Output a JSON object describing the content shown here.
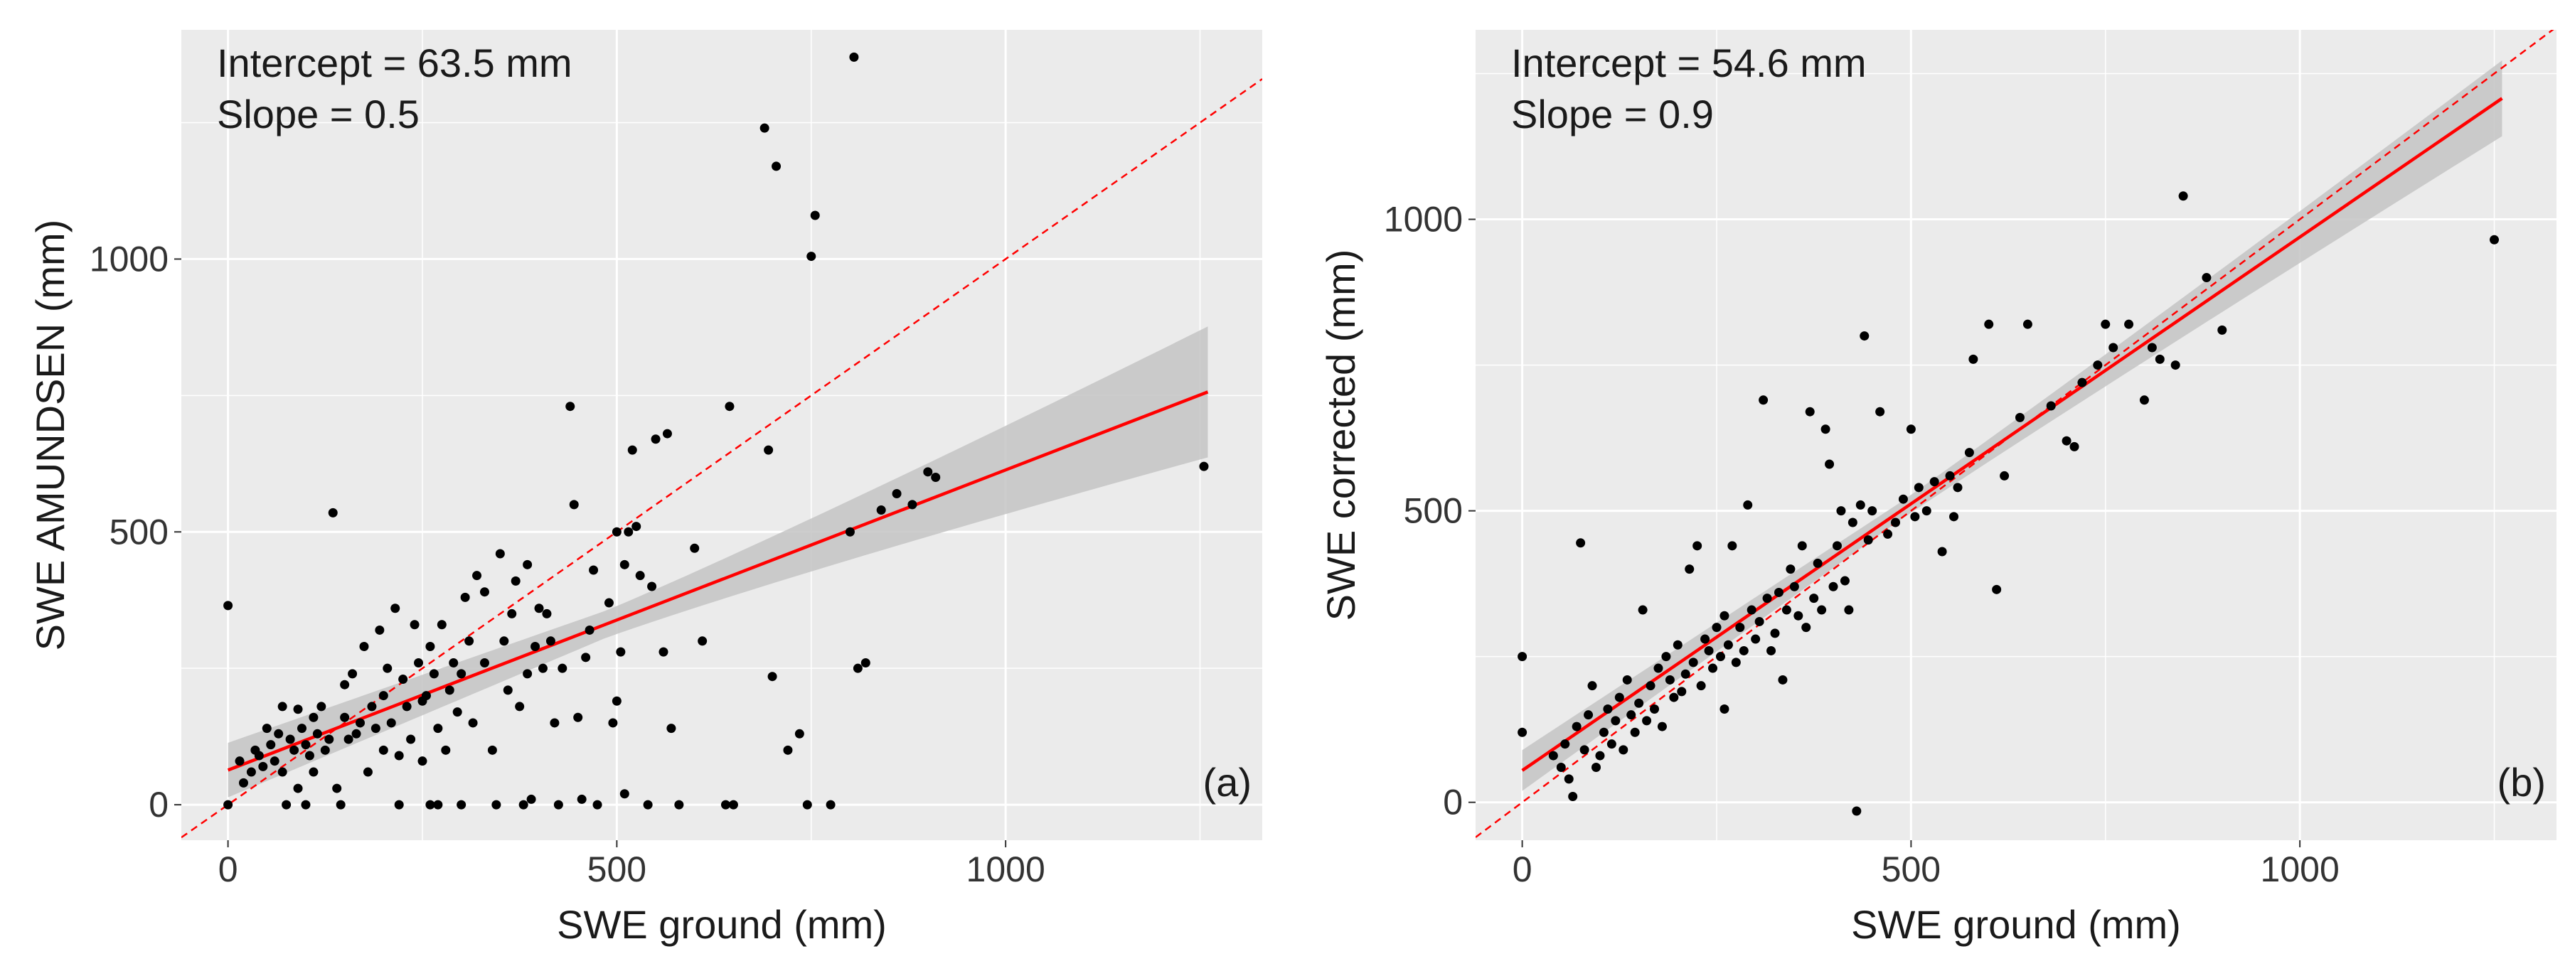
{
  "chart_data": [
    {
      "type": "scatter",
      "panel_label": "(a)",
      "xlabel": "SWE ground (mm)",
      "ylabel": "SWE AMUNDSEN (mm)",
      "xlim": [
        -60,
        1330
      ],
      "ylim": [
        -65,
        1420
      ],
      "xticks": [
        0,
        500,
        1000
      ],
      "yticks": [
        0,
        500,
        1000
      ],
      "xtick_labels": [
        "0",
        "500",
        "1000"
      ],
      "ytick_labels": [
        "0",
        "500",
        "1000"
      ],
      "annotations": [
        "Intercept = 63.5 mm",
        "Slope = 0.5"
      ],
      "reference_line": {
        "style": "dashed",
        "color": "#ff0000",
        "intercept": 0,
        "slope": 1
      },
      "fit": {
        "intercept": 63.5,
        "slope": 0.55,
        "x_range": [
          0,
          1260
        ],
        "band_halfwidth_start": 50,
        "band_halfwidth_mid": 25,
        "band_halfwidth_end": 120,
        "color": "#ff0000",
        "band_color": "#c4c4c4"
      },
      "points": [
        [
          0,
          0
        ],
        [
          0,
          365
        ],
        [
          15,
          80
        ],
        [
          20,
          40
        ],
        [
          30,
          60
        ],
        [
          35,
          100
        ],
        [
          40,
          90
        ],
        [
          45,
          70
        ],
        [
          50,
          140
        ],
        [
          55,
          110
        ],
        [
          60,
          80
        ],
        [
          65,
          130
        ],
        [
          70,
          180
        ],
        [
          70,
          60
        ],
        [
          75,
          0
        ],
        [
          80,
          120
        ],
        [
          85,
          100
        ],
        [
          90,
          175
        ],
        [
          90,
          30
        ],
        [
          95,
          140
        ],
        [
          100,
          0
        ],
        [
          100,
          110
        ],
        [
          105,
          90
        ],
        [
          110,
          160
        ],
        [
          110,
          60
        ],
        [
          115,
          130
        ],
        [
          120,
          180
        ],
        [
          125,
          100
        ],
        [
          130,
          120
        ],
        [
          135,
          535
        ],
        [
          140,
          30
        ],
        [
          145,
          0
        ],
        [
          150,
          160
        ],
        [
          150,
          220
        ],
        [
          155,
          120
        ],
        [
          160,
          240
        ],
        [
          165,
          130
        ],
        [
          170,
          150
        ],
        [
          175,
          290
        ],
        [
          180,
          60
        ],
        [
          185,
          180
        ],
        [
          190,
          140
        ],
        [
          195,
          320
        ],
        [
          200,
          100
        ],
        [
          200,
          200
        ],
        [
          205,
          250
        ],
        [
          210,
          150
        ],
        [
          215,
          360
        ],
        [
          220,
          0
        ],
        [
          220,
          90
        ],
        [
          225,
          230
        ],
        [
          230,
          180
        ],
        [
          235,
          120
        ],
        [
          240,
          330
        ],
        [
          245,
          260
        ],
        [
          250,
          80
        ],
        [
          250,
          190
        ],
        [
          255,
          200
        ],
        [
          260,
          0
        ],
        [
          260,
          290
        ],
        [
          265,
          240
        ],
        [
          270,
          140
        ],
        [
          270,
          0
        ],
        [
          275,
          330
        ],
        [
          280,
          100
        ],
        [
          285,
          210
        ],
        [
          290,
          260
        ],
        [
          295,
          170
        ],
        [
          300,
          240
        ],
        [
          300,
          0
        ],
        [
          305,
          380
        ],
        [
          310,
          300
        ],
        [
          315,
          150
        ],
        [
          320,
          420
        ],
        [
          330,
          260
        ],
        [
          330,
          390
        ],
        [
          340,
          100
        ],
        [
          345,
          0
        ],
        [
          350,
          460
        ],
        [
          355,
          300
        ],
        [
          360,
          210
        ],
        [
          365,
          350
        ],
        [
          370,
          410
        ],
        [
          375,
          180
        ],
        [
          380,
          0
        ],
        [
          385,
          240
        ],
        [
          385,
          440
        ],
        [
          390,
          10
        ],
        [
          395,
          290
        ],
        [
          400,
          360
        ],
        [
          405,
          250
        ],
        [
          410,
          350
        ],
        [
          415,
          300
        ],
        [
          420,
          150
        ],
        [
          425,
          0
        ],
        [
          430,
          250
        ],
        [
          440,
          730
        ],
        [
          445,
          550
        ],
        [
          450,
          160
        ],
        [
          455,
          10
        ],
        [
          460,
          270
        ],
        [
          465,
          320
        ],
        [
          470,
          430
        ],
        [
          475,
          0
        ],
        [
          490,
          370
        ],
        [
          495,
          150
        ],
        [
          500,
          500
        ],
        [
          500,
          190
        ],
        [
          505,
          280
        ],
        [
          510,
          440
        ],
        [
          510,
          20
        ],
        [
          515,
          500
        ],
        [
          520,
          650
        ],
        [
          525,
          510
        ],
        [
          530,
          420
        ],
        [
          540,
          0
        ],
        [
          545,
          400
        ],
        [
          550,
          670
        ],
        [
          560,
          280
        ],
        [
          565,
          680
        ],
        [
          570,
          140
        ],
        [
          580,
          0
        ],
        [
          600,
          470
        ],
        [
          610,
          300
        ],
        [
          640,
          0
        ],
        [
          645,
          730
        ],
        [
          650,
          0
        ],
        [
          690,
          1240
        ],
        [
          695,
          650
        ],
        [
          700,
          235
        ],
        [
          705,
          1170
        ],
        [
          720,
          100
        ],
        [
          735,
          130
        ],
        [
          745,
          0
        ],
        [
          750,
          1005
        ],
        [
          755,
          1080
        ],
        [
          775,
          0
        ],
        [
          800,
          500
        ],
        [
          805,
          1370
        ],
        [
          810,
          250
        ],
        [
          820,
          260
        ],
        [
          840,
          540
        ],
        [
          860,
          570
        ],
        [
          880,
          550
        ],
        [
          900,
          610
        ],
        [
          910,
          600
        ],
        [
          1255,
          620
        ]
      ]
    },
    {
      "type": "scatter",
      "panel_label": "(b)",
      "xlabel": "SWE ground (mm)",
      "ylabel": "SWE corrected (mm)",
      "xlim": [
        -60,
        1330
      ],
      "ylim": [
        -65,
        1325
      ],
      "xticks": [
        0,
        500,
        1000
      ],
      "yticks": [
        0,
        500,
        1000
      ],
      "xtick_labels": [
        "0",
        "500",
        "1000"
      ],
      "ytick_labels": [
        "0",
        "500",
        "1000"
      ],
      "annotations": [
        "Intercept = 54.6 mm",
        "Slope = 0.9"
      ],
      "reference_line": {
        "style": "dashed",
        "color": "#ff0000",
        "intercept": 0,
        "slope": 1
      },
      "fit": {
        "intercept": 54.6,
        "slope": 0.915,
        "x_range": [
          0,
          1260
        ],
        "band_halfwidth_start": 35,
        "band_halfwidth_mid": 15,
        "band_halfwidth_end": 65,
        "color": "#ff0000",
        "band_color": "#c4c4c4"
      },
      "points": [
        [
          0,
          120
        ],
        [
          0,
          250
        ],
        [
          40,
          80
        ],
        [
          50,
          60
        ],
        [
          55,
          100
        ],
        [
          60,
          40
        ],
        [
          65,
          10
        ],
        [
          70,
          130
        ],
        [
          75,
          445
        ],
        [
          80,
          90
        ],
        [
          85,
          150
        ],
        [
          90,
          200
        ],
        [
          95,
          60
        ],
        [
          100,
          80
        ],
        [
          105,
          120
        ],
        [
          110,
          160
        ],
        [
          115,
          100
        ],
        [
          120,
          140
        ],
        [
          125,
          180
        ],
        [
          130,
          90
        ],
        [
          135,
          210
        ],
        [
          140,
          150
        ],
        [
          145,
          120
        ],
        [
          150,
          170
        ],
        [
          155,
          330
        ],
        [
          160,
          140
        ],
        [
          165,
          200
        ],
        [
          170,
          160
        ],
        [
          175,
          230
        ],
        [
          180,
          130
        ],
        [
          185,
          250
        ],
        [
          190,
          210
        ],
        [
          195,
          180
        ],
        [
          200,
          270
        ],
        [
          205,
          190
        ],
        [
          210,
          220
        ],
        [
          215,
          400
        ],
        [
          220,
          240
        ],
        [
          225,
          440
        ],
        [
          230,
          200
        ],
        [
          235,
          280
        ],
        [
          240,
          260
        ],
        [
          245,
          230
        ],
        [
          250,
          300
        ],
        [
          255,
          250
        ],
        [
          260,
          160
        ],
        [
          260,
          320
        ],
        [
          265,
          270
        ],
        [
          270,
          440
        ],
        [
          275,
          240
        ],
        [
          280,
          300
        ],
        [
          285,
          260
        ],
        [
          290,
          510
        ],
        [
          295,
          330
        ],
        [
          300,
          280
        ],
        [
          305,
          310
        ],
        [
          310,
          690
        ],
        [
          315,
          350
        ],
        [
          320,
          260
        ],
        [
          325,
          290
        ],
        [
          330,
          360
        ],
        [
          335,
          210
        ],
        [
          340,
          330
        ],
        [
          345,
          400
        ],
        [
          350,
          370
        ],
        [
          355,
          320
        ],
        [
          360,
          440
        ],
        [
          365,
          300
        ],
        [
          370,
          670
        ],
        [
          375,
          350
        ],
        [
          380,
          410
        ],
        [
          385,
          330
        ],
        [
          390,
          640
        ],
        [
          395,
          580
        ],
        [
          400,
          370
        ],
        [
          405,
          440
        ],
        [
          410,
          500
        ],
        [
          415,
          380
        ],
        [
          420,
          330
        ],
        [
          425,
          480
        ],
        [
          430,
          -15
        ],
        [
          435,
          510
        ],
        [
          440,
          800
        ],
        [
          445,
          450
        ],
        [
          450,
          500
        ],
        [
          460,
          670
        ],
        [
          470,
          460
        ],
        [
          480,
          480
        ],
        [
          490,
          520
        ],
        [
          500,
          640
        ],
        [
          505,
          490
        ],
        [
          510,
          540
        ],
        [
          520,
          500
        ],
        [
          530,
          550
        ],
        [
          540,
          430
        ],
        [
          550,
          560
        ],
        [
          555,
          490
        ],
        [
          560,
          540
        ],
        [
          575,
          600
        ],
        [
          580,
          760
        ],
        [
          600,
          820
        ],
        [
          610,
          365
        ],
        [
          620,
          560
        ],
        [
          640,
          660
        ],
        [
          650,
          820
        ],
        [
          680,
          680
        ],
        [
          700,
          620
        ],
        [
          710,
          610
        ],
        [
          720,
          720
        ],
        [
          740,
          750
        ],
        [
          750,
          820
        ],
        [
          760,
          780
        ],
        [
          780,
          820
        ],
        [
          800,
          690
        ],
        [
          810,
          780
        ],
        [
          820,
          760
        ],
        [
          840,
          750
        ],
        [
          850,
          1040
        ],
        [
          880,
          900
        ],
        [
          900,
          810
        ],
        [
          1250,
          965
        ]
      ]
    }
  ]
}
